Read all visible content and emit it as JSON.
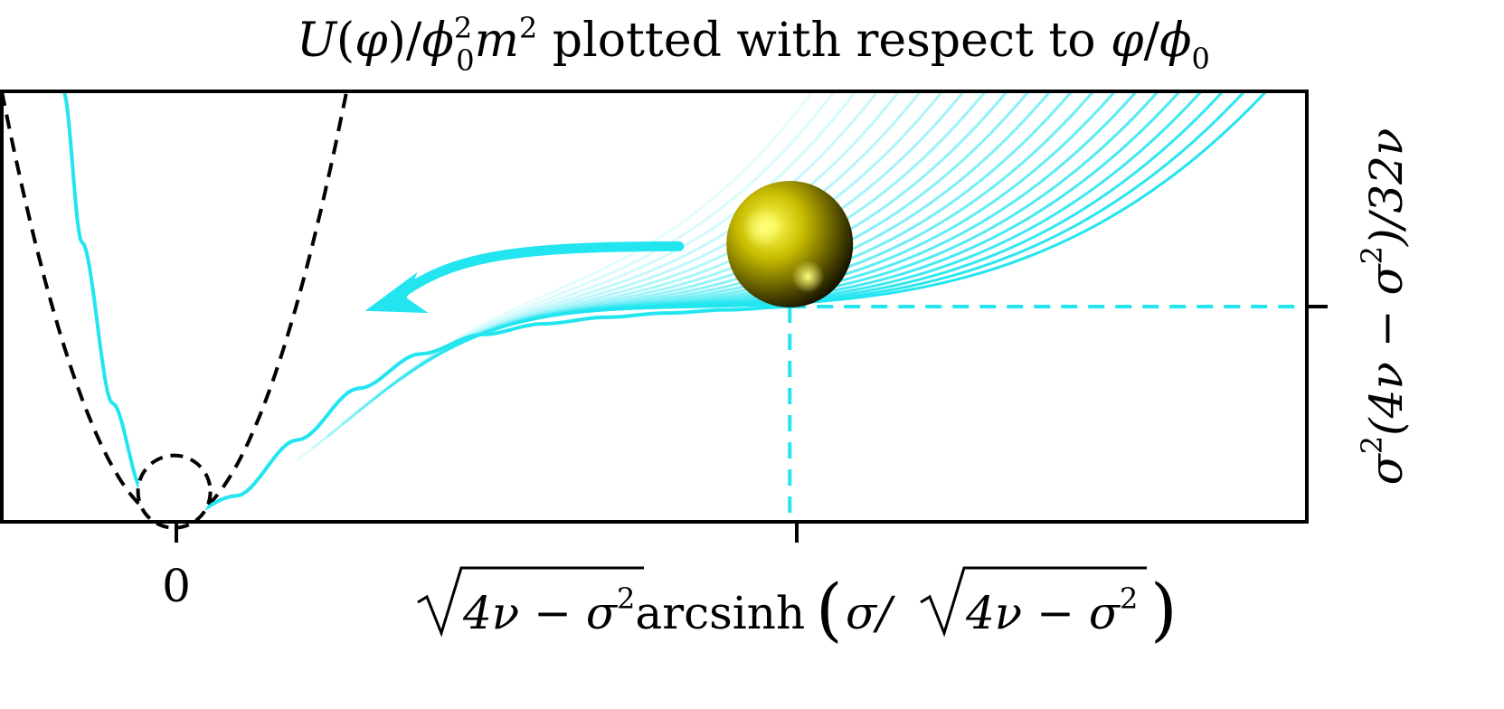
{
  "chart_data": {
    "type": "line",
    "title": "U(φ)/ϕ₀²m² plotted with respect to φ/ϕ₀",
    "title_parts": {
      "U": "U",
      "open_paren": "(",
      "phi1": "φ",
      "close_slash": ")/",
      "phi0": "ϕ",
      "sup2a": "2",
      "sub0a": "0",
      "m": "m",
      "sup2b": "2",
      "middle": " plotted with respect to ",
      "phi2": "φ",
      "slash": "/",
      "phi0b": "ϕ",
      "sub0b": "0"
    },
    "x_ticks": [
      {
        "label": "0",
        "value": 0
      },
      {
        "label": "√(4ν − σ²) arcsinh(σ/√(4ν − σ²))",
        "value": 1
      }
    ],
    "x_tick_text": {
      "zero": "0",
      "sqrt_inner_1": "4ν − σ",
      "sq_1": "2",
      "arcsinh": "arcsinh",
      "open_paren": "(",
      "sigma_slash": "σ/",
      "sqrt_inner_2": "4ν − σ",
      "sq_2": "2",
      "close_paren": ")"
    },
    "y_ticks": [
      {
        "label": "σ²(4ν − σ²)/32ν",
        "value": 1
      }
    ],
    "y_tick_text": {
      "sigma": "σ",
      "sq_1": "2",
      "open": "(4ν − σ",
      "sq_2": "2",
      "close": ")/32ν"
    },
    "xlim": [
      -0.28,
      1.84
    ],
    "ylim": [
      0,
      2.0
    ],
    "grid": false,
    "legend": "none",
    "colors": {
      "curve": "#22e5f0",
      "dashed_reference": "#000000",
      "ball": "#c8bc00",
      "arrow": "#22e5f0"
    },
    "series": [
      {
        "style": "dashed-black",
        "x": [
          -0.28,
          -0.2,
          -0.1,
          0,
          0.1,
          0.2,
          0.28
        ],
        "y": [
          2.0,
          1.02,
          0.255,
          0,
          0.255,
          1.02,
          2.0
        ]
      },
      {
        "style": "solid-cyan",
        "x": [
          -0.18,
          -0.15,
          -0.1,
          -0.05,
          0,
          0.05
        ],
        "y": [
          2.0,
          1.3,
          0.55,
          0.14,
          0,
          0.05
        ]
      },
      {
        "style": "solid-cyan",
        "x": [
          0,
          0.1,
          0.2,
          0.3,
          0.4,
          0.5,
          0.6,
          0.7,
          0.8,
          0.9,
          1.0
        ],
        "y": [
          0,
          0.12,
          0.38,
          0.62,
          0.78,
          0.87,
          0.92,
          0.95,
          0.97,
          0.985,
          1.0
        ]
      }
    ],
    "family_count": 22,
    "annotations": {
      "ball_x": 1.0,
      "ball_y": 1.29,
      "arrow_from_x": 0.82,
      "arrow_to_x": 0.31,
      "circle_x": 0,
      "circle_y": 0.14
    }
  }
}
